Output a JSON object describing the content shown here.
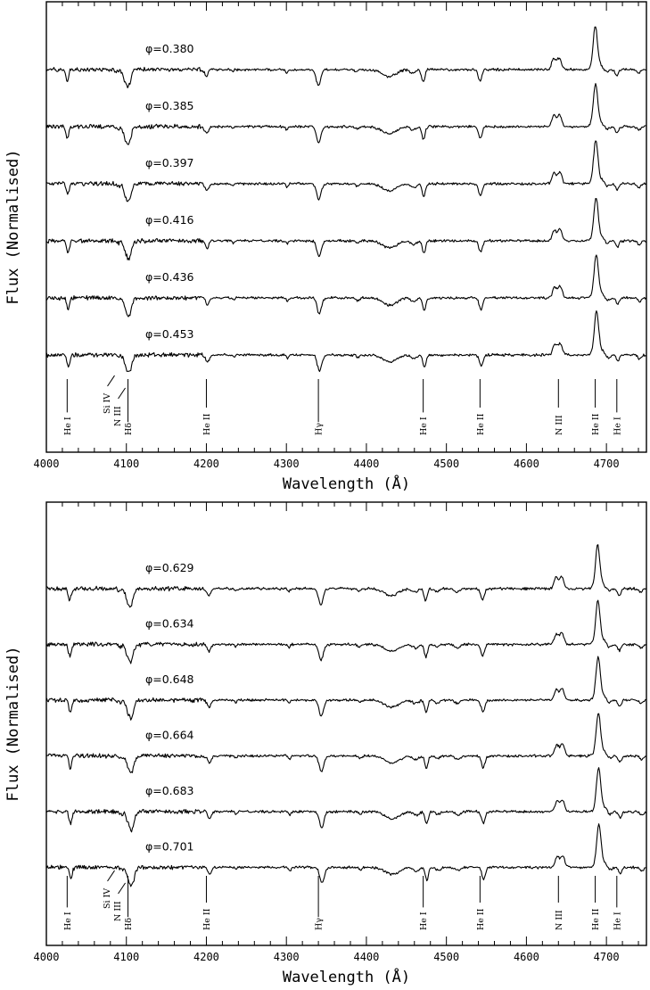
{
  "chart_data": [
    {
      "type": "line",
      "xlabel": "Wavelength (Å)",
      "ylabel": "Flux (Normalised)",
      "xlim": [
        4000,
        4750
      ],
      "xticks": [
        "4000",
        "4100",
        "4200",
        "4300",
        "4400",
        "4500",
        "4600",
        "4700"
      ],
      "series": [
        {
          "phase_label": "φ=0.380",
          "phase": 0.38
        },
        {
          "phase_label": "φ=0.385",
          "phase": 0.385
        },
        {
          "phase_label": "φ=0.397",
          "phase": 0.397
        },
        {
          "phase_label": "φ=0.416",
          "phase": 0.416
        },
        {
          "phase_label": "φ=0.436",
          "phase": 0.436
        },
        {
          "phase_label": "φ=0.453",
          "phase": 0.453
        }
      ],
      "line_ids": [
        {
          "label": "He I",
          "wavelength": 4026
        },
        {
          "label": "Si IV",
          "wavelength": 4089
        },
        {
          "label": "N III",
          "wavelength": 4097
        },
        {
          "label": "Hδ",
          "wavelength": 4102
        },
        {
          "label": "He II",
          "wavelength": 4200
        },
        {
          "label": "Hγ",
          "wavelength": 4340
        },
        {
          "label": "He I",
          "wavelength": 4471
        },
        {
          "label": "He II",
          "wavelength": 4542
        },
        {
          "label": "N III",
          "wavelength": 4640
        },
        {
          "label": "He II",
          "wavelength": 4686
        },
        {
          "label": "He I",
          "wavelength": 4713
        }
      ]
    },
    {
      "type": "line",
      "xlabel": "Wavelength (Å)",
      "ylabel": "Flux (Normalised)",
      "xlim": [
        4000,
        4750
      ],
      "xticks": [
        "4000",
        "4100",
        "4200",
        "4300",
        "4400",
        "4500",
        "4600",
        "4700"
      ],
      "series": [
        {
          "phase_label": "φ=0.629",
          "phase": 0.629
        },
        {
          "phase_label": "φ=0.634",
          "phase": 0.634
        },
        {
          "phase_label": "φ=0.648",
          "phase": 0.648
        },
        {
          "phase_label": "φ=0.664",
          "phase": 0.664
        },
        {
          "phase_label": "φ=0.683",
          "phase": 0.683
        },
        {
          "phase_label": "φ=0.701",
          "phase": 0.701
        }
      ],
      "line_ids": [
        {
          "label": "He I",
          "wavelength": 4026
        },
        {
          "label": "Si IV",
          "wavelength": 4089
        },
        {
          "label": "N III",
          "wavelength": 4097
        },
        {
          "label": "Hδ",
          "wavelength": 4102
        },
        {
          "label": "He II",
          "wavelength": 4200
        },
        {
          "label": "Hγ",
          "wavelength": 4340
        },
        {
          "label": "He I",
          "wavelength": 4471
        },
        {
          "label": "He II",
          "wavelength": 4542
        },
        {
          "label": "N III",
          "wavelength": 4640
        },
        {
          "label": "He II",
          "wavelength": 4686
        },
        {
          "label": "He I",
          "wavelength": 4713
        }
      ]
    }
  ]
}
